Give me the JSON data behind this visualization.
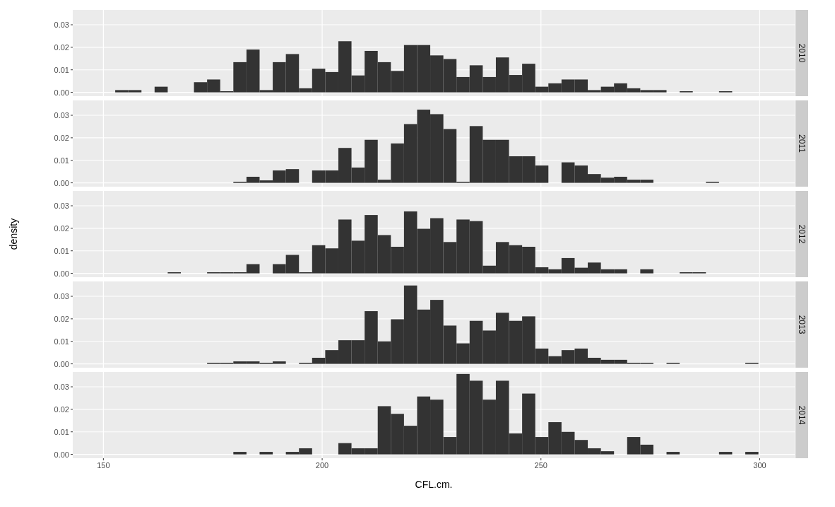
{
  "chart_data": [
    {
      "type": "histogram",
      "title": "2010",
      "color": "#333333",
      "grid": true,
      "tick_labels": "y",
      "xlim": [
        143,
        308
      ],
      "ylim": [
        -0.0017,
        0.0366
      ],
      "xticks": [
        150,
        200,
        250,
        300
      ],
      "yticks": [
        {
          "value": 0,
          "label": "0.00"
        },
        {
          "value": 0.01,
          "label": "0.01"
        },
        {
          "value": 0.02,
          "label": "0.02"
        },
        {
          "value": 0.03,
          "label": "0.03"
        }
      ],
      "bins": [
        152.7,
        155.7,
        158.7,
        161.7,
        164.7,
        167.7,
        170.7,
        173.7,
        176.7,
        179.7,
        182.7,
        185.7,
        188.7,
        191.7,
        194.7,
        197.7,
        200.7,
        203.7,
        206.7,
        209.7,
        212.7,
        215.7,
        218.7,
        221.7,
        224.7,
        227.7,
        230.7,
        233.7,
        236.7,
        239.7,
        242.7,
        245.7,
        248.7,
        251.7,
        254.7,
        257.7,
        260.7,
        263.7,
        266.7,
        269.7,
        272.7,
        275.7,
        278.7,
        281.7,
        284.7,
        287.7,
        290.7,
        293.7,
        296.7,
        299.7
      ],
      "values": [
        0.001,
        0.001,
        0,
        0.0025,
        0,
        0,
        0.0045,
        0.0057,
        0.0005,
        0.0134,
        0.019,
        0.001,
        0.0134,
        0.017,
        0.0018,
        0.0105,
        0.009,
        0.0227,
        0.0075,
        0.0184,
        0.0134,
        0.0095,
        0.021,
        0.021,
        0.0164,
        0.0148,
        0.0068,
        0.012,
        0.0068,
        0.0155,
        0.0077,
        0.0127,
        0.0025,
        0.004,
        0.0057,
        0.0057,
        0.001,
        0.0025,
        0.004,
        0.0018,
        0.001,
        0.001,
        0,
        0.0005,
        0,
        0,
        0.0005,
        0,
        0
      ]
    },
    {
      "type": "histogram",
      "title": "2011",
      "color": "#333333",
      "grid": true,
      "tick_labels": "y",
      "xlim": [
        143,
        308
      ],
      "ylim": [
        -0.0017,
        0.0366
      ],
      "xticks": [
        150,
        200,
        250,
        300
      ],
      "yticks": [
        {
          "value": 0,
          "label": "0.00"
        },
        {
          "value": 0.01,
          "label": "0.01"
        },
        {
          "value": 0.02,
          "label": "0.02"
        },
        {
          "value": 0.03,
          "label": "0.03"
        }
      ],
      "bins": [
        152.7,
        155.7,
        158.7,
        161.7,
        164.7,
        167.7,
        170.7,
        173.7,
        176.7,
        179.7,
        182.7,
        185.7,
        188.7,
        191.7,
        194.7,
        197.7,
        200.7,
        203.7,
        206.7,
        209.7,
        212.7,
        215.7,
        218.7,
        221.7,
        224.7,
        227.7,
        230.7,
        233.7,
        236.7,
        239.7,
        242.7,
        245.7,
        248.7,
        251.7,
        254.7,
        257.7,
        260.7,
        263.7,
        266.7,
        269.7,
        272.7,
        275.7,
        278.7,
        281.7,
        284.7,
        287.7,
        290.7,
        293.7,
        296.7,
        299.7
      ],
      "values": [
        0,
        0,
        0,
        0,
        0,
        0,
        0,
        0,
        0,
        0.0005,
        0.0027,
        0.0011,
        0.0055,
        0.0061,
        0,
        0.0055,
        0.0055,
        0.0155,
        0.0068,
        0.0191,
        0.0014,
        0.0175,
        0.0261,
        0.0325,
        0.0305,
        0.0239,
        0.0005,
        0.0252,
        0.0191,
        0.0191,
        0.0118,
        0.0118,
        0.0077,
        0,
        0.0091,
        0.0077,
        0.0039,
        0.0023,
        0.0027,
        0.0014,
        0.0014,
        0,
        0,
        0,
        0,
        0.0005,
        0,
        0,
        0
      ]
    },
    {
      "type": "histogram",
      "title": "2012",
      "ylabel": "density",
      "color": "#333333",
      "grid": true,
      "tick_labels": "y",
      "xlim": [
        143,
        308
      ],
      "ylim": [
        -0.0017,
        0.0366
      ],
      "xticks": [
        150,
        200,
        250,
        300
      ],
      "yticks": [
        {
          "value": 0,
          "label": "0.00"
        },
        {
          "value": 0.01,
          "label": "0.01"
        },
        {
          "value": 0.02,
          "label": "0.02"
        },
        {
          "value": 0.03,
          "label": "0.03"
        }
      ],
      "bins": [
        152.7,
        155.7,
        158.7,
        161.7,
        164.7,
        167.7,
        170.7,
        173.7,
        176.7,
        179.7,
        182.7,
        185.7,
        188.7,
        191.7,
        194.7,
        197.7,
        200.7,
        203.7,
        206.7,
        209.7,
        212.7,
        215.7,
        218.7,
        221.7,
        224.7,
        227.7,
        230.7,
        233.7,
        236.7,
        239.7,
        242.7,
        245.7,
        248.7,
        251.7,
        254.7,
        257.7,
        260.7,
        263.7,
        266.7,
        269.7,
        272.7,
        275.7,
        278.7,
        281.7,
        284.7,
        287.7,
        290.7,
        293.7,
        296.7,
        299.7
      ],
      "values": [
        0,
        0,
        0,
        0,
        0.0005,
        0,
        0,
        0.0005,
        0.0005,
        0.0005,
        0.0041,
        0,
        0.0041,
        0.0082,
        0.0005,
        0.0125,
        0.0111,
        0.0239,
        0.0145,
        0.0259,
        0.017,
        0.0118,
        0.0275,
        0.0198,
        0.0245,
        0.0139,
        0.0239,
        0.0232,
        0.0034,
        0.0139,
        0.0125,
        0.0118,
        0.0027,
        0.0018,
        0.0068,
        0.0025,
        0.0048,
        0.0018,
        0.0018,
        0,
        0.0018,
        0,
        0,
        0.0005,
        0.0005,
        0,
        0,
        0,
        0
      ]
    },
    {
      "type": "histogram",
      "title": "2013",
      "color": "#333333",
      "grid": true,
      "tick_labels": "y",
      "xlim": [
        143,
        308
      ],
      "ylim": [
        -0.0017,
        0.0366
      ],
      "xticks": [
        150,
        200,
        250,
        300
      ],
      "yticks": [
        {
          "value": 0,
          "label": "0.00"
        },
        {
          "value": 0.01,
          "label": "0.01"
        },
        {
          "value": 0.02,
          "label": "0.02"
        },
        {
          "value": 0.03,
          "label": "0.03"
        }
      ],
      "bins": [
        152.7,
        155.7,
        158.7,
        161.7,
        164.7,
        167.7,
        170.7,
        173.7,
        176.7,
        179.7,
        182.7,
        185.7,
        188.7,
        191.7,
        194.7,
        197.7,
        200.7,
        203.7,
        206.7,
        209.7,
        212.7,
        215.7,
        218.7,
        221.7,
        224.7,
        227.7,
        230.7,
        233.7,
        236.7,
        239.7,
        242.7,
        245.7,
        248.7,
        251.7,
        254.7,
        257.7,
        260.7,
        263.7,
        266.7,
        269.7,
        272.7,
        275.7,
        278.7,
        281.7,
        284.7,
        287.7,
        290.7,
        293.7,
        296.7,
        299.7
      ],
      "values": [
        0,
        0,
        0,
        0,
        0,
        0,
        0,
        0.0005,
        0.0005,
        0.0011,
        0.0011,
        0.0005,
        0.0011,
        0,
        0.0005,
        0.0027,
        0.0061,
        0.0105,
        0.0105,
        0.0234,
        0.01,
        0.0198,
        0.0348,
        0.0241,
        0.0284,
        0.017,
        0.0091,
        0.0191,
        0.0148,
        0.0227,
        0.0191,
        0.0211,
        0.0068,
        0.0034,
        0.0061,
        0.0068,
        0.0027,
        0.0018,
        0.0018,
        0.0005,
        0.0005,
        0,
        0.0005,
        0,
        0,
        0,
        0,
        0,
        0.0005
      ]
    },
    {
      "type": "histogram",
      "title": "2014",
      "xlabel": "CFL.cm.",
      "color": "#333333",
      "grid": true,
      "xlim": [
        143,
        308
      ],
      "ylim": [
        -0.0017,
        0.0366
      ],
      "xticks": [
        150,
        200,
        250,
        300
      ],
      "yticks": [
        {
          "value": 0,
          "label": "0.00"
        },
        {
          "value": 0.01,
          "label": "0.01"
        },
        {
          "value": 0.02,
          "label": "0.02"
        },
        {
          "value": 0.03,
          "label": "0.03"
        }
      ],
      "bins": [
        152.7,
        155.7,
        158.7,
        161.7,
        164.7,
        167.7,
        170.7,
        173.7,
        176.7,
        179.7,
        182.7,
        185.7,
        188.7,
        191.7,
        194.7,
        197.7,
        200.7,
        203.7,
        206.7,
        209.7,
        212.7,
        215.7,
        218.7,
        221.7,
        224.7,
        227.7,
        230.7,
        233.7,
        236.7,
        239.7,
        242.7,
        245.7,
        248.7,
        251.7,
        254.7,
        257.7,
        260.7,
        263.7,
        266.7,
        269.7,
        272.7,
        275.7,
        278.7,
        281.7,
        284.7,
        287.7,
        290.7,
        293.7,
        296.7,
        299.7
      ],
      "values": [
        0,
        0,
        0,
        0,
        0,
        0,
        0,
        0,
        0,
        0.0011,
        0,
        0.0011,
        0,
        0.0011,
        0.0027,
        0,
        0,
        0.005,
        0.0027,
        0.0027,
        0.0214,
        0.018,
        0.0127,
        0.0257,
        0.0243,
        0.0077,
        0.0357,
        0.0327,
        0.0243,
        0.0327,
        0.0093,
        0.027,
        0.0077,
        0.0143,
        0.01,
        0.0064,
        0.0027,
        0.0014,
        0,
        0.0077,
        0.0043,
        0,
        0.0011,
        0,
        0,
        0,
        0.0011,
        0,
        0.0011
      ]
    }
  ]
}
